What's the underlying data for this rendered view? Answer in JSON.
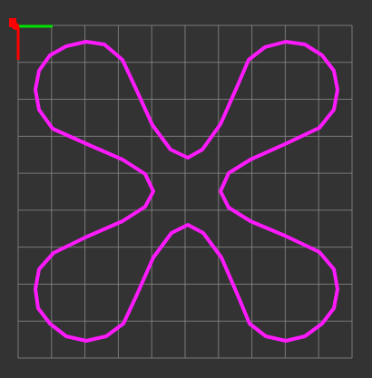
{
  "colors": {
    "background": "#333333",
    "grid": "#8f8f8f",
    "curve": "#ff1aff",
    "axis_x": "#00e000",
    "axis_y": "#ff0000",
    "origin_marker": "#ff0000"
  },
  "grid": {
    "rows": 9,
    "cols": 10
  },
  "axis_gizmo": {
    "x_axis_icon": "green-arrow",
    "y_axis_icon": "red-arrow",
    "origin_icon": "origin-dot"
  },
  "shape": {
    "name": "four-petal-rose-curve",
    "petals": 4
  }
}
